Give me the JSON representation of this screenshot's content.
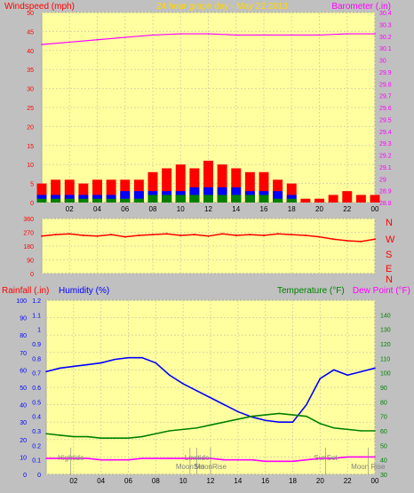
{
  "header": {
    "left_label": "Windspeed (mph)",
    "center_label": "24 hour graph day - May 22 2013",
    "right_label": "Barometer (.in)"
  },
  "colors": {
    "background": "#c0c0c0",
    "plot_bg": "#ffffa0",
    "grid": "#d8d8a0",
    "axis_red": "#ff0000",
    "axis_blue": "#0000ff",
    "axis_green": "#008000",
    "axis_magenta": "#ff00ff",
    "title": "#ffd700",
    "label_gray": "#808080"
  },
  "bottom_labels": {
    "rainfall": "Rainfall (.in)",
    "humidity": "Humidity (%)",
    "temperature": "Temperature (°F)",
    "dewpoint": "Dew Point (°F)"
  },
  "compass": [
    "N",
    "W",
    "S",
    "E",
    "N"
  ],
  "events": [
    {
      "label": "Hightide",
      "hour": 1.8
    },
    {
      "label": "MoonSet",
      "hour": 10.5
    },
    {
      "label": "Lowtide",
      "hour": 11.0
    },
    {
      "label": "MoonRise",
      "hour": 12.0
    },
    {
      "label": "SunSet",
      "hour": 20.4
    },
    {
      "label": "Moon Rise",
      "hour": 23.5
    }
  ],
  "chart_data": [
    {
      "type": "bar",
      "name": "wind-panel",
      "x_ticks": [
        "02",
        "04",
        "06",
        "08",
        "10",
        "12",
        "14",
        "16",
        "18",
        "20",
        "22",
        "00"
      ],
      "xlim": [
        0,
        24
      ],
      "ylim_left": [
        0,
        50
      ],
      "ticks_left": [
        0,
        5,
        10,
        15,
        20,
        25,
        30,
        35,
        40,
        45,
        50
      ],
      "ylim_right": [
        28.8,
        30.4
      ],
      "ticks_right": [
        28.8,
        28.9,
        29,
        29.1,
        29.2,
        29.3,
        29.4,
        29.5,
        29.6,
        29.7,
        29.8,
        29.9,
        30,
        30.1,
        30.2,
        30.3,
        30.4
      ],
      "ticks_right_labels": [
        "28.8",
        "28.9",
        "29",
        "29.1",
        "29.2",
        "29.3",
        "29.4",
        "29.5",
        "29.6",
        "29.7",
        "29.8",
        "29.9",
        "30",
        "30.1",
        "30.2",
        "30.3",
        "30.4"
      ],
      "series": [
        {
          "key": "gust",
          "type": "bar",
          "color": "#ff0000",
          "x": [
            0,
            1,
            2,
            3,
            4,
            5,
            6,
            7,
            8,
            9,
            10,
            11,
            12,
            13,
            14,
            15,
            16,
            17,
            18,
            19,
            20,
            21,
            22,
            23,
            24
          ],
          "y": [
            5,
            6,
            6,
            5,
            6,
            6,
            6,
            6,
            8,
            9,
            10,
            9,
            11,
            10,
            9,
            8,
            8,
            6,
            5,
            1,
            1,
            2,
            3,
            2,
            2
          ]
        },
        {
          "key": "wind",
          "type": "bar",
          "color": "#0000ff",
          "x": [
            0,
            1,
            2,
            3,
            4,
            5,
            6,
            7,
            8,
            9,
            10,
            11,
            12,
            13,
            14,
            15,
            16,
            17,
            18,
            19,
            20,
            21,
            22,
            23,
            24
          ],
          "y": [
            2,
            2,
            2,
            2,
            2,
            2,
            3,
            3,
            3,
            3,
            3,
            4,
            4,
            4,
            4,
            3,
            3,
            3,
            2,
            0,
            0,
            0,
            0,
            0,
            0
          ]
        },
        {
          "key": "avg",
          "type": "bar",
          "color": "#008000",
          "x": [
            0,
            1,
            2,
            3,
            4,
            5,
            6,
            7,
            8,
            9,
            10,
            11,
            12,
            13,
            14,
            15,
            16,
            17,
            18,
            19,
            20,
            21,
            22,
            23,
            24
          ],
          "y": [
            1,
            1,
            1,
            1,
            1,
            1,
            1,
            1,
            2,
            2,
            2,
            2,
            2,
            2,
            2,
            2,
            2,
            1,
            1,
            0,
            0,
            0,
            0,
            0,
            0
          ]
        },
        {
          "key": "barometer",
          "type": "line",
          "color": "#ff00ff",
          "axis": "right",
          "x": [
            0,
            2,
            4,
            6,
            8,
            10,
            12,
            14,
            16,
            18,
            20,
            22,
            24
          ],
          "y": [
            30.13,
            30.15,
            30.17,
            30.19,
            30.21,
            30.22,
            30.22,
            30.21,
            30.21,
            30.21,
            30.21,
            30.22,
            30.22
          ]
        }
      ]
    },
    {
      "type": "line",
      "name": "wind-direction-panel",
      "x_ticks": [
        "02",
        "04",
        "06",
        "08",
        "10",
        "12",
        "14",
        "16",
        "18",
        "20",
        "22",
        "00"
      ],
      "xlim": [
        0,
        24
      ],
      "ylim_left": [
        0,
        360
      ],
      "ticks_left": [
        0,
        90,
        180,
        270,
        360
      ],
      "series": [
        {
          "key": "direction",
          "color": "#ff0000",
          "x": [
            0,
            1,
            2,
            3,
            4,
            5,
            6,
            7,
            8,
            9,
            10,
            11,
            12,
            13,
            14,
            15,
            16,
            17,
            18,
            19,
            20,
            21,
            22,
            23,
            24
          ],
          "y": [
            245,
            255,
            260,
            250,
            245,
            255,
            240,
            250,
            255,
            260,
            250,
            255,
            245,
            260,
            250,
            255,
            250,
            260,
            255,
            250,
            240,
            225,
            215,
            210,
            225
          ]
        }
      ]
    },
    {
      "type": "line",
      "name": "temperature-humidity-panel",
      "x_ticks": [
        "02",
        "04",
        "06",
        "08",
        "10",
        "12",
        "14",
        "16",
        "18",
        "20",
        "22",
        "00"
      ],
      "xlim": [
        0,
        24
      ],
      "ylim_rain": [
        0,
        1.2
      ],
      "ticks_rain": [
        0,
        0.1,
        0.2,
        0.3,
        0.4,
        0.5,
        0.6,
        0.7,
        0.8,
        0.9,
        1,
        1.1,
        1.2
      ],
      "ylim_humidity": [
        0,
        100
      ],
      "ticks_humidity": [
        0,
        10,
        20,
        30,
        40,
        50,
        60,
        70,
        80,
        90,
        100
      ],
      "ylim_temp": [
        30,
        150
      ],
      "ticks_temp": [
        30,
        40,
        50,
        60,
        70,
        80,
        90,
        100,
        110,
        120,
        130,
        140
      ],
      "series": [
        {
          "key": "humidity",
          "color": "#0000ff",
          "axis": "humidity",
          "x": [
            0,
            1,
            2,
            3,
            4,
            5,
            6,
            7,
            8,
            9,
            10,
            11,
            12,
            13,
            14,
            15,
            16,
            17,
            18,
            19,
            20,
            21,
            22,
            23,
            24
          ],
          "y": [
            59,
            61,
            62,
            63,
            64,
            66,
            67,
            67,
            64,
            57,
            52,
            48,
            44,
            40,
            36,
            33,
            31,
            30,
            30,
            40,
            55,
            60,
            57,
            59,
            61
          ]
        },
        {
          "key": "temperature",
          "color": "#008000",
          "axis": "temp",
          "x": [
            0,
            1,
            2,
            3,
            4,
            5,
            6,
            7,
            8,
            9,
            10,
            11,
            12,
            13,
            14,
            15,
            16,
            17,
            18,
            19,
            20,
            21,
            22,
            23,
            24
          ],
          "y": [
            58,
            57,
            56,
            56,
            55,
            55,
            55,
            56,
            58,
            60,
            61,
            62,
            64,
            66,
            68,
            70,
            71,
            72,
            71,
            70,
            65,
            62,
            61,
            60,
            60
          ]
        },
        {
          "key": "dewpoint",
          "color": "#ff00ff",
          "axis": "temp",
          "x": [
            0,
            1,
            2,
            3,
            4,
            5,
            6,
            7,
            8,
            9,
            10,
            11,
            12,
            13,
            14,
            15,
            16,
            17,
            18,
            19,
            20,
            21,
            22,
            23,
            24
          ],
          "y": [
            41,
            41,
            41,
            41,
            40,
            40,
            40,
            41,
            41,
            41,
            41,
            41,
            41,
            40,
            40,
            40,
            39,
            39,
            39,
            40,
            41,
            41,
            42,
            42,
            42
          ]
        }
      ]
    }
  ]
}
